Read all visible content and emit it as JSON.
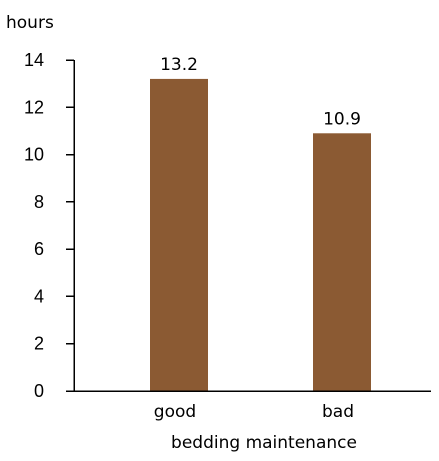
{
  "chart_data": {
    "type": "bar",
    "title": "",
    "xlabel": "bedding maintenance",
    "ylabel": "hours",
    "categories": [
      "good",
      "bad"
    ],
    "values": [
      13.2,
      10.9
    ],
    "data_labels": [
      "13.2",
      "10.9"
    ],
    "ylim": [
      0,
      14
    ],
    "yticks": [
      0,
      2,
      4,
      6,
      8,
      10,
      12,
      14
    ],
    "grid": false,
    "legend": "none",
    "bar_color": "#8B5A33"
  }
}
